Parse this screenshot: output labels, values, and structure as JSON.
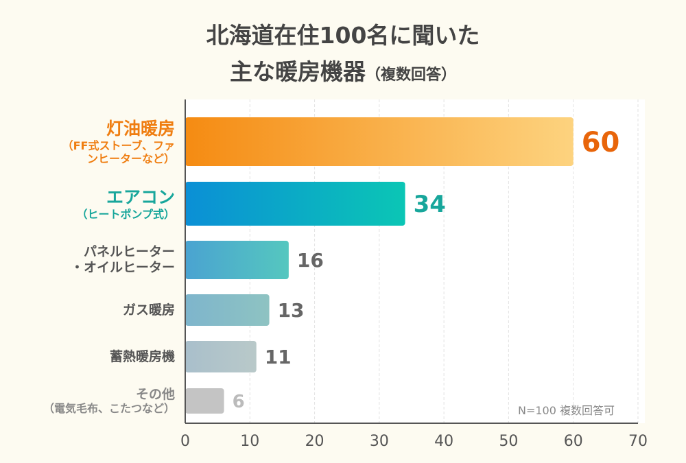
{
  "title_line1": "北海道在住100名に聞いた",
  "title_line2": "主な暖房機器",
  "title_suffix": "（複数回答）",
  "note": "N=100 複数回答可",
  "chart_data": {
    "type": "bar",
    "orientation": "horizontal",
    "categories": [
      {
        "main": "灯油暖房",
        "sub": "（FF式ストーブ、ファンヒーターなど）",
        "color": "#ef7d10"
      },
      {
        "main": "エアコン",
        "sub": "（ヒートポンプ式）",
        "color": "#17a69b"
      },
      {
        "main": "パネルヒーター・オイルヒーター",
        "sub": "",
        "color": "#555555"
      },
      {
        "main": "ガス暖房",
        "sub": "",
        "color": "#555555"
      },
      {
        "main": "蓄熱暖房機",
        "sub": "",
        "color": "#555555"
      },
      {
        "main": "その他",
        "sub": "（電気毛布、こたつなど）",
        "color": "#888888"
      }
    ],
    "values": [
      60,
      34,
      16,
      13,
      11,
      6
    ],
    "bar_gradients": [
      [
        "#f58b12",
        "#fdd37f"
      ],
      [
        "#0b8fd6",
        "#0bc6b5"
      ],
      [
        "#4aa3d1",
        "#55c7bf"
      ],
      [
        "#7eb5cc",
        "#8ec3c2"
      ],
      [
        "#a9bfcb",
        "#b9c9c9"
      ],
      [
        "#c4c4c4",
        "#c4c4c4"
      ]
    ],
    "value_label_colors": [
      "#e8650a",
      "#17a69b",
      "#666666",
      "#666666",
      "#666666",
      "#bbbbbb"
    ],
    "xlim": [
      0,
      70
    ],
    "xticks": [
      "0",
      "10",
      "20",
      "30",
      "40",
      "50",
      "60",
      "70"
    ],
    "grid": true
  }
}
